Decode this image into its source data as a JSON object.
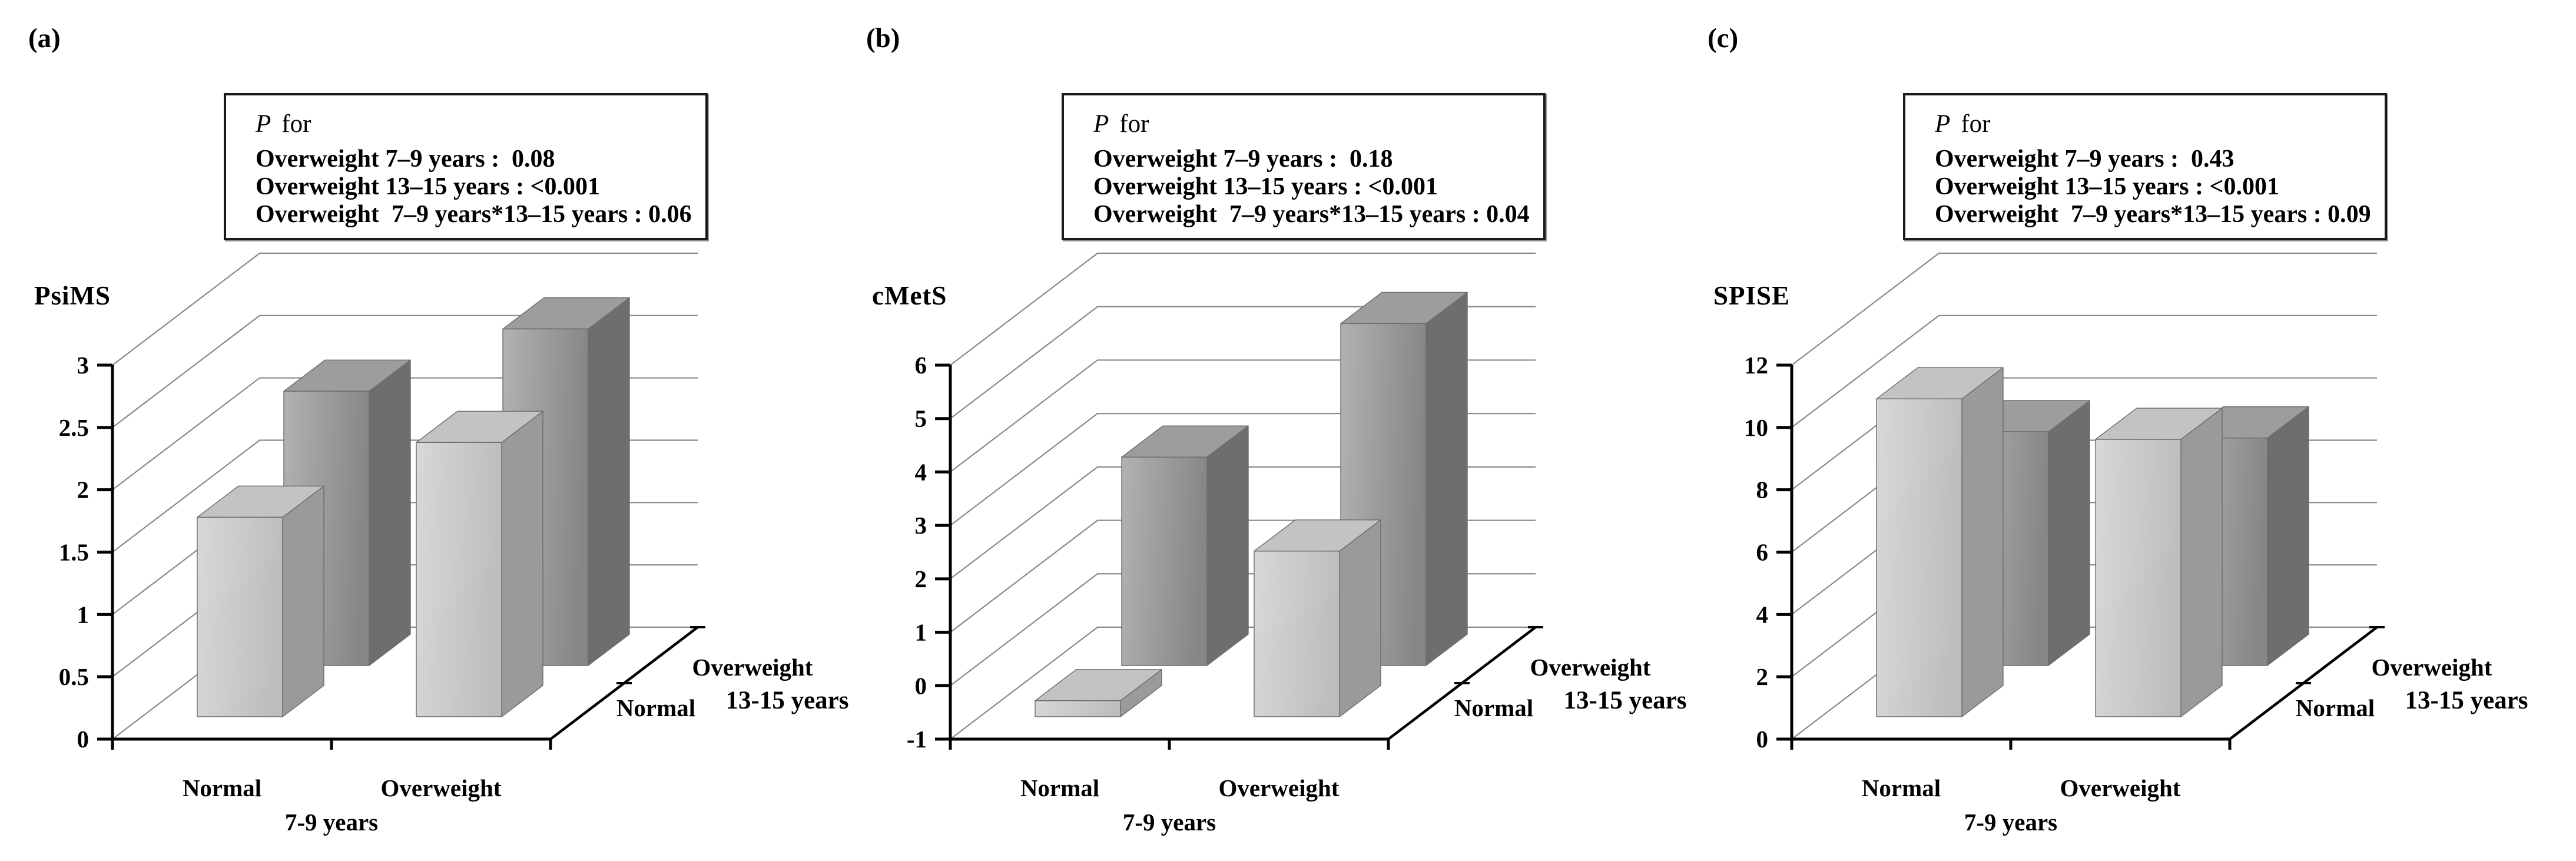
{
  "figure_background": "#ffffff",
  "colors": {
    "light_bar_front_1": "#d8d8d8",
    "light_bar_front_2": "#bdbdbd",
    "light_bar_top": "#c3c3c3",
    "light_bar_side": "#9a9a9a",
    "dark_bar_front_1": "#b2b2b2",
    "dark_bar_front_2": "#868686",
    "dark_bar_top": "#9d9d9d",
    "dark_bar_side": "#6e6e6e",
    "bar_edge": "#6b6b6b",
    "gridline": "#8a8a8a",
    "axis": "#000000",
    "text": "#000000"
  },
  "panels": [
    {
      "letter": "(a)",
      "axis_title": "PsiMS",
      "legend": {
        "p_label": "P",
        "p_rest": "for",
        "line2": "Overweight 7–9 years :  0.08",
        "line3": "Overweight 13–15 years : <0.001",
        "line4": "Overweight  7–9 years*13–15 years : 0.06"
      }
    },
    {
      "letter": "(b)",
      "axis_title": "cMetS",
      "legend": {
        "p_label": "P",
        "p_rest": "for",
        "line2": "Overweight 7–9 years :  0.18",
        "line3": "Overweight 13–15 years : <0.001",
        "line4": "Overweight  7–9 years*13–15 years : 0.04"
      }
    },
    {
      "letter": "(c)",
      "axis_title": "SPISE",
      "legend": {
        "p_label": "P",
        "p_rest": "for",
        "line2": "Overweight 7–9 years :  0.43",
        "line3": "Overweight 13–15 years : <0.001",
        "line4": "Overweight  7–9 years*13–15 years : 0.09"
      }
    }
  ],
  "chart_data": [
    {
      "type": "bar",
      "projection": "3d",
      "title": "PsiMS",
      "categories": [
        "Normal",
        "Overweight"
      ],
      "group_axis_label": "7-9 years",
      "depth_categories": [
        "Normal",
        "Overweight"
      ],
      "depth_axis_label": "13-15 years",
      "series": [
        {
          "name": "Normal 13-15 years",
          "row": "front",
          "values": [
            1.6,
            2.2
          ]
        },
        {
          "name": "Overweight 13-15 years",
          "row": "back",
          "values": [
            2.2,
            2.7
          ]
        }
      ],
      "ylim": [
        0,
        3
      ],
      "ytick_step": 0.5,
      "grid": true,
      "p_values": {
        "overweight_7_9_years": "0.08",
        "overweight_13_15_years": "<0.001",
        "interaction_7_9_x_13_15": "0.06"
      }
    },
    {
      "type": "bar",
      "projection": "3d",
      "title": "cMetS",
      "categories": [
        "Normal",
        "Overweight"
      ],
      "group_axis_label": "7-9 years",
      "depth_categories": [
        "Normal",
        "Overweight"
      ],
      "depth_axis_label": "13-15 years",
      "series": [
        {
          "name": "Normal 13-15 years",
          "row": "front",
          "values": [
            -0.7,
            2.1
          ]
        },
        {
          "name": "Overweight 13-15 years",
          "row": "back",
          "values": [
            2.9,
            5.4
          ]
        }
      ],
      "ylim": [
        -1,
        6
      ],
      "ytick_step": 1,
      "grid": true,
      "p_values": {
        "overweight_7_9_years": "0.18",
        "overweight_13_15_years": "<0.001",
        "interaction_7_9_x_13_15": "0.04"
      }
    },
    {
      "type": "bar",
      "projection": "3d",
      "title": "SPISE",
      "categories": [
        "Normal",
        "Overweight"
      ],
      "group_axis_label": "7-9 years",
      "depth_categories": [
        "Normal",
        "Overweight"
      ],
      "depth_axis_label": "13-15 years",
      "series": [
        {
          "name": "Normal 13-15 years",
          "row": "front",
          "values": [
            10.2,
            8.9
          ]
        },
        {
          "name": "Overweight 13-15 years",
          "row": "back",
          "values": [
            7.5,
            7.3
          ]
        }
      ],
      "ylim": [
        0,
        12
      ],
      "ytick_step": 2,
      "grid": true,
      "p_values": {
        "overweight_7_9_years": "0.43",
        "overweight_13_15_years": "<0.001",
        "interaction_7_9_x_13_15": "0.09"
      }
    }
  ]
}
